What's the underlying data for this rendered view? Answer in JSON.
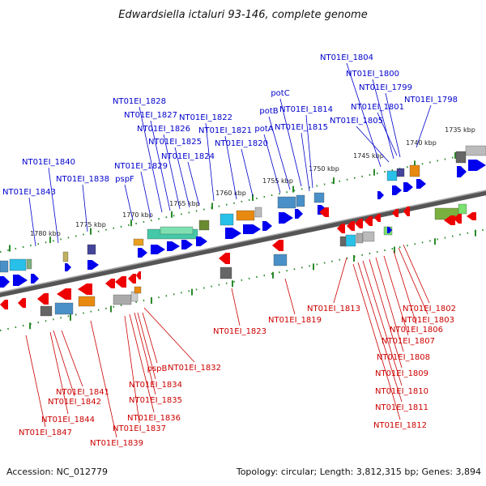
{
  "title": "Edwardsiella ictaluri 93-146, complete genome",
  "footer": {
    "accession": "Accession: NC_012779",
    "summary": "Topology: circular; Length: 3,812,315 bp; Genes: 3,894"
  },
  "kbp_labels": [
    "1735 kbp",
    "1740 kbp",
    "1745 kbp",
    "1750 kbp",
    "1755 kbp",
    "1760 kbp",
    "1765 kbp",
    "1770 kbp",
    "1775 kbp",
    "1780 kbp"
  ],
  "top_genes": [
    "NT01EI_1804",
    "NT01EI_1800",
    "NT01EI_1799",
    "NT01EI_1798",
    "NT01EI_1801",
    "NT01EI_1805",
    "potC",
    "potB",
    "NT01EI_1814",
    "potA",
    "NT01EI_1815",
    "NT01EI_1828",
    "NT01EI_1827",
    "NT01EI_1826",
    "NT01EI_1822",
    "NT01EI_1821",
    "NT01EI_1825",
    "NT01EI_1820",
    "NT01EI_1824",
    "NT01EI_1840",
    "NT01EI_1838",
    "NT01EI_1829",
    "pspF",
    "NT01EI_1843"
  ],
  "bottom_genes": [
    "NT01EI_1813",
    "NT01EI_1802",
    "NT01EI_1803",
    "NT01EI_1806",
    "NT01EI_1807",
    "NT01EI_1808",
    "NT01EI_1809",
    "NT01EI_1810",
    "NT01EI_1811",
    "NT01EI_1812",
    "NT01EI_1823",
    "NT01EI_1819",
    "NT01EI_1832",
    "pspB",
    "NT01EI_1834",
    "NT01EI_1835",
    "NT01EI_1836",
    "NT01EI_1837",
    "NT01EI_1839",
    "NT01EI_1841",
    "NT01EI_1842",
    "NT01EI_1844",
    "NT01EI_1847"
  ],
  "colors": {
    "forward_gene": "#0000ee",
    "reverse_gene": "#ee0000",
    "top_label": "#0000cc",
    "bottom_label": "#cc0000",
    "backbone": "#777777",
    "tick": "#2a8a2a"
  }
}
